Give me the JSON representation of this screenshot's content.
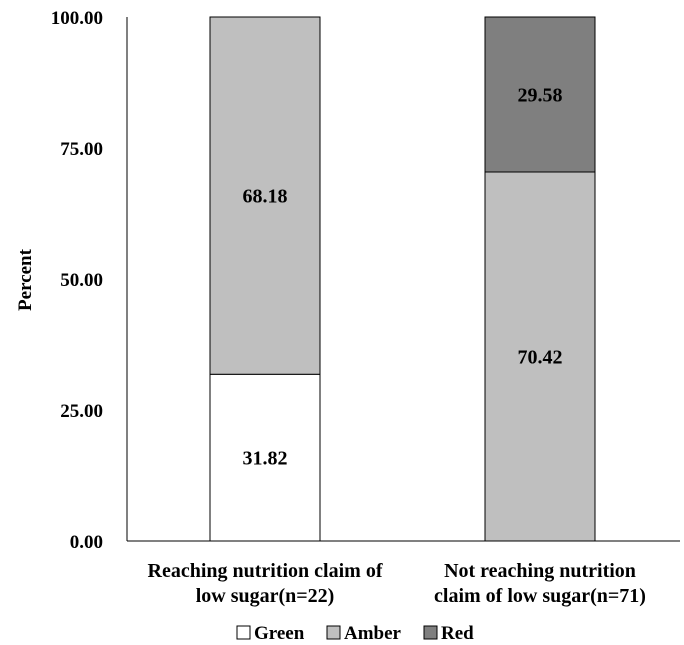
{
  "chart_data": {
    "type": "bar",
    "stacked": true,
    "ylabel": "Percent",
    "ylim": [
      0,
      100
    ],
    "yticks": [
      "0.00",
      "25.00",
      "50.00",
      "75.00",
      "100.00"
    ],
    "ytick_values": [
      0,
      25,
      50,
      75,
      100
    ],
    "categories": [
      [
        "Reaching nutrition claim of",
        "low sugar(n=22)"
      ],
      [
        "Not reaching nutrition",
        "claim of low sugar(n=71)"
      ]
    ],
    "series": [
      {
        "name": "Green",
        "color": "#ffffff",
        "values": [
          31.82,
          0
        ],
        "labels": [
          "31.82",
          ""
        ]
      },
      {
        "name": "Amber",
        "color": "#bfbfbf",
        "values": [
          68.18,
          70.42
        ],
        "labels": [
          "68.18",
          "70.42"
        ]
      },
      {
        "name": "Red",
        "color": "#7f7f7f",
        "values": [
          0,
          29.58
        ],
        "labels": [
          "",
          "29.58"
        ]
      }
    ],
    "legend_position": "bottom",
    "grid": false
  }
}
